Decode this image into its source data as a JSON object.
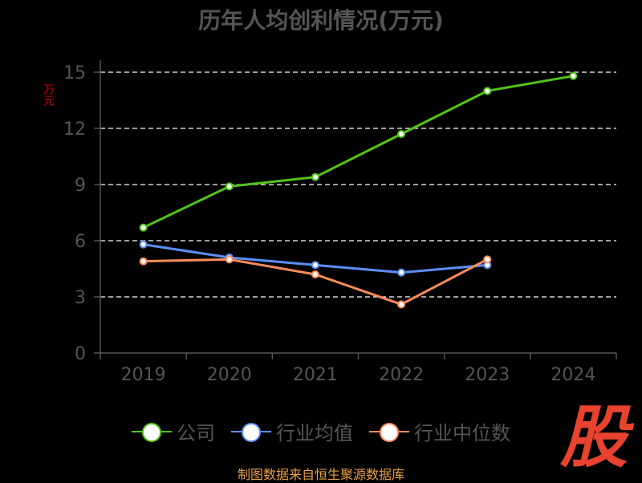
{
  "title": "历年人均创利情况(万元)",
  "unit_label": "万元",
  "source": "制图数据来自恒生聚源数据库",
  "watermark": "股",
  "chart_data": {
    "type": "line",
    "title": "历年人均创利情况(万元)",
    "ylabel": "万元",
    "xlabel": "",
    "categories": [
      "2019",
      "2020",
      "2021",
      "2022",
      "2023",
      "2024"
    ],
    "ylim": [
      0,
      15
    ],
    "yticks": [
      0,
      3,
      6,
      9,
      12,
      15
    ],
    "grid": true,
    "legend_position": "bottom",
    "series": [
      {
        "name": "公司",
        "color": "#52c41a",
        "values": [
          6.7,
          8.9,
          9.4,
          11.7,
          14.0,
          14.8
        ]
      },
      {
        "name": "行业均值",
        "color": "#5b8ff9",
        "values": [
          5.8,
          5.1,
          4.7,
          4.3,
          4.7,
          null
        ]
      },
      {
        "name": "行业中位数",
        "color": "#ff8c5a",
        "values": [
          4.9,
          5.0,
          4.2,
          2.6,
          5.0,
          null
        ]
      }
    ]
  }
}
